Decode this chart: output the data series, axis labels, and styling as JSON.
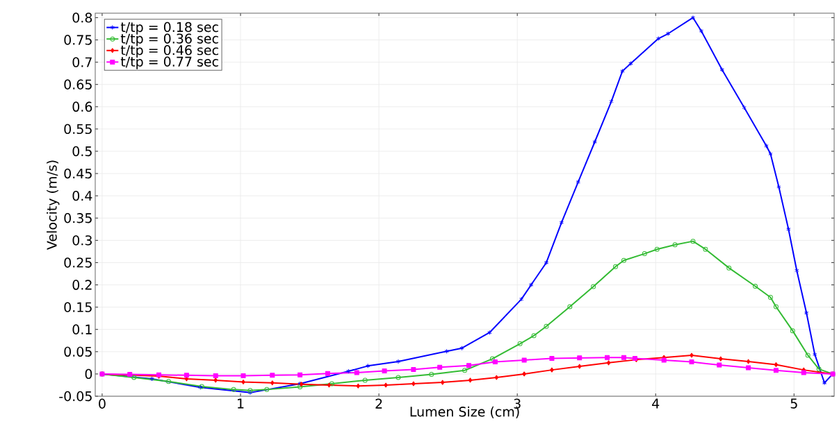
{
  "chart_data": {
    "type": "line",
    "xlabel": "Lumen Size (cm)",
    "ylabel": "Velocity (m/s)",
    "xlim": [
      -0.05,
      5.29
    ],
    "ylim": [
      -0.05,
      0.81
    ],
    "xticks": [
      0,
      1,
      2,
      3,
      4,
      5
    ],
    "yticks": [
      -0.05,
      0,
      0.05,
      0.1,
      0.15,
      0.2,
      0.25,
      0.3,
      0.35,
      0.4,
      0.45,
      0.5,
      0.55,
      0.6,
      0.65,
      0.7,
      0.75,
      0.8
    ],
    "grid": true,
    "legend": "top left",
    "line_style": "solid",
    "series": [
      {
        "name": "t/tp = 0.18 sec",
        "color": "#0000ff",
        "marker": "cross",
        "x": [
          0,
          0.36,
          0.71,
          1.07,
          1.43,
          1.78,
          1.92,
          2.14,
          2.49,
          2.6,
          2.8,
          3.03,
          3.1,
          3.21,
          3.32,
          3.44,
          3.56,
          3.68,
          3.76,
          3.82,
          4.02,
          4.09,
          4.27,
          4.33,
          4.48,
          4.64,
          4.8,
          4.83,
          4.89,
          4.96,
          5.02,
          5.09,
          5.15,
          5.22,
          5.28
        ],
        "values": [
          0,
          -0.011,
          -0.03,
          -0.042,
          -0.022,
          0.006,
          0.018,
          0.028,
          0.051,
          0.058,
          0.093,
          0.168,
          0.2,
          0.25,
          0.34,
          0.431,
          0.521,
          0.612,
          0.68,
          0.697,
          0.753,
          0.764,
          0.8,
          0.77,
          0.683,
          0.598,
          0.512,
          0.494,
          0.42,
          0.325,
          0.232,
          0.137,
          0.044,
          -0.02,
          0
        ]
      },
      {
        "name": "t/tp = 0.36 sec",
        "color": "#33bb33",
        "marker": "circle",
        "x": [
          0,
          0.23,
          0.48,
          0.72,
          0.95,
          1.07,
          1.19,
          1.43,
          1.66,
          1.9,
          2.14,
          2.38,
          2.62,
          2.82,
          3.02,
          3.12,
          3.21,
          3.38,
          3.55,
          3.71,
          3.77,
          3.92,
          4.01,
          4.14,
          4.27,
          4.36,
          4.53,
          4.72,
          4.83,
          4.87,
          4.99,
          5.1,
          5.18,
          5.28
        ],
        "values": [
          0,
          -0.008,
          -0.017,
          -0.028,
          -0.035,
          -0.037,
          -0.035,
          -0.029,
          -0.022,
          -0.014,
          -0.008,
          -0.001,
          0.008,
          0.034,
          0.068,
          0.086,
          0.107,
          0.151,
          0.196,
          0.241,
          0.255,
          0.27,
          0.28,
          0.29,
          0.298,
          0.28,
          0.238,
          0.197,
          0.172,
          0.151,
          0.097,
          0.042,
          0.011,
          0
        ]
      },
      {
        "name": "t/tp = 0.46 sec",
        "color": "#ff0000",
        "marker": "diamond",
        "x": [
          0,
          0.41,
          0.61,
          0.82,
          1.02,
          1.23,
          1.44,
          1.64,
          1.85,
          2.05,
          2.25,
          2.46,
          2.66,
          2.85,
          3.05,
          3.25,
          3.45,
          3.66,
          3.86,
          4.06,
          4.26,
          4.47,
          4.67,
          4.87,
          5.07,
          5.28
        ],
        "values": [
          0,
          -0.005,
          -0.011,
          -0.014,
          -0.018,
          -0.02,
          -0.023,
          -0.025,
          -0.027,
          -0.025,
          -0.022,
          -0.019,
          -0.014,
          -0.008,
          0,
          0.009,
          0.017,
          0.025,
          0.032,
          0.037,
          0.042,
          0.034,
          0.028,
          0.021,
          0.009,
          0
        ]
      },
      {
        "name": "t/tp = 0.77 sec",
        "color": "#ff00ff",
        "marker": "square",
        "x": [
          0,
          0.2,
          0.41,
          0.61,
          0.82,
          1.02,
          1.23,
          1.43,
          1.63,
          1.84,
          2.04,
          2.25,
          2.44,
          2.65,
          2.84,
          3.05,
          3.25,
          3.45,
          3.65,
          3.77,
          3.85,
          4.06,
          4.26,
          4.46,
          4.67,
          4.87,
          5.07,
          5.28
        ],
        "values": [
          0,
          -0.001,
          -0.002,
          -0.003,
          -0.004,
          -0.004,
          -0.003,
          -0.002,
          0.001,
          0.003,
          0.007,
          0.01,
          0.015,
          0.019,
          0.027,
          0.031,
          0.035,
          0.036,
          0.037,
          0.037,
          0.035,
          0.031,
          0.027,
          0.02,
          0.014,
          0.008,
          0.003,
          0
        ]
      }
    ]
  }
}
